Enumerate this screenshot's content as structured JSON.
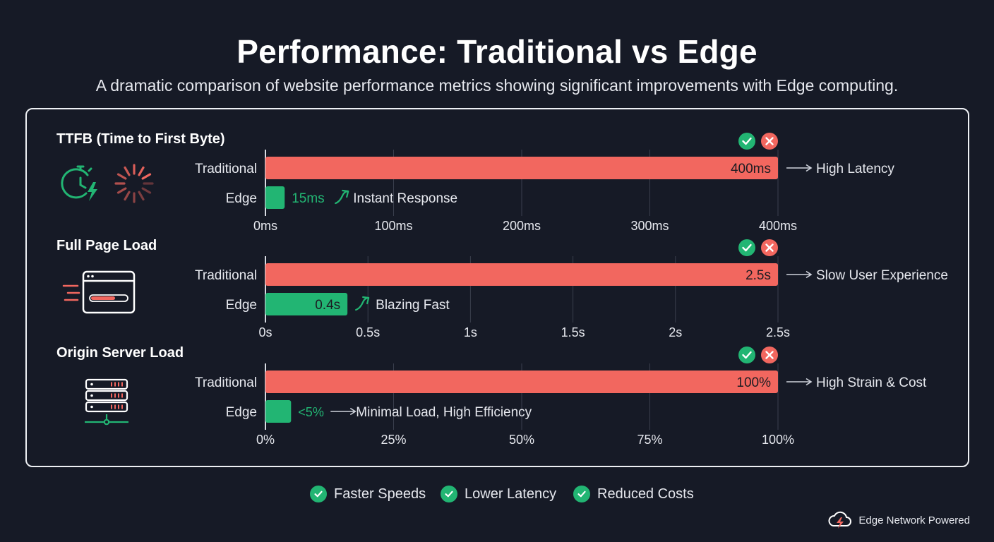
{
  "title": "Performance: Traditional vs Edge",
  "subtitle": "A dramatic comparison of website performance metrics showing significant improvements with Edge computing.",
  "colors": {
    "traditional": "#f2675f",
    "edge": "#22b573",
    "background": "#161a26"
  },
  "legend": [
    {
      "label": "Faster Speeds",
      "icon": "check-circle-icon"
    },
    {
      "label": "Lower Latency",
      "icon": "check-circle-icon"
    },
    {
      "label": "Reduced Costs",
      "icon": "check-circle-icon"
    }
  ],
  "footer": {
    "label": "Edge Network Powered",
    "icon": "cloud-bolt-icon"
  },
  "chart_data": [
    {
      "type": "bar",
      "title": "TTFB (Time to First Byte)",
      "icons": [
        "stopwatch-bolt-icon",
        "loading-spinner-icon"
      ],
      "categories": [
        "Traditional",
        "Edge"
      ],
      "values": [
        400,
        15
      ],
      "value_labels": [
        "400ms",
        "15ms"
      ],
      "annotations": [
        "High Latency",
        "Instant Response"
      ],
      "xlim": [
        0,
        400
      ],
      "ticks": [
        0,
        100,
        200,
        300,
        400
      ],
      "tick_labels": [
        "0ms",
        "100ms",
        "200ms",
        "300ms",
        "400ms"
      ],
      "grid": true
    },
    {
      "type": "bar",
      "title": "Full Page Load",
      "icons": [
        "browser-loading-icon"
      ],
      "categories": [
        "Traditional",
        "Edge"
      ],
      "values": [
        2.5,
        0.4
      ],
      "value_labels": [
        "2.5s",
        "0.4s"
      ],
      "annotations": [
        "Slow User Experience",
        "Blazing Fast"
      ],
      "xlim": [
        0,
        2.5
      ],
      "ticks": [
        0,
        0.5,
        1,
        1.5,
        2,
        2.5
      ],
      "tick_labels": [
        "0s",
        "0.5s",
        "1s",
        "1.5s",
        "2s",
        "2.5s"
      ],
      "grid": true
    },
    {
      "type": "bar",
      "title": "Origin Server Load",
      "icons": [
        "server-rack-icon"
      ],
      "categories": [
        "Traditional",
        "Edge"
      ],
      "values": [
        100,
        5
      ],
      "value_labels": [
        "100%",
        "<5%"
      ],
      "annotations": [
        "High Strain & Cost",
        "Minimal Load, High Efficiency"
      ],
      "xlim": [
        0,
        100
      ],
      "ticks": [
        0,
        25,
        50,
        75,
        100
      ],
      "tick_labels": [
        "0%",
        "25%",
        "50%",
        "75%",
        "100%"
      ],
      "grid": true
    }
  ]
}
